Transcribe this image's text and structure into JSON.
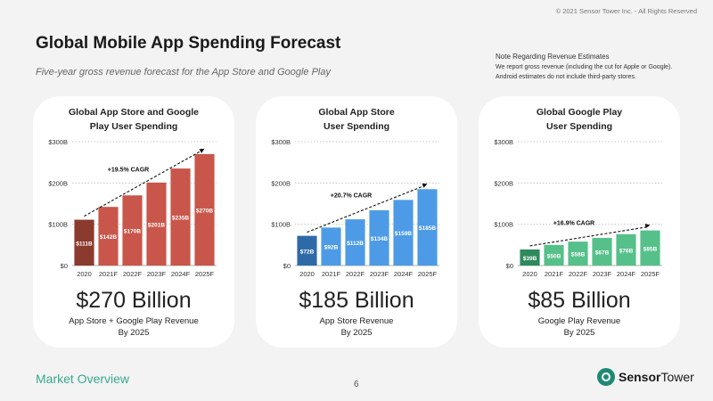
{
  "header": {
    "copyright": "© 2021 Sensor Tower Inc. - All Rights Reserved",
    "title": "Global Mobile App Spending Forecast",
    "subtitle": "Five-year gross revenue forecast for the App Store and Google Play"
  },
  "note": {
    "title": "Note Regarding Revenue Estimates",
    "line1": "We report gross revenue (including the cut for Apple or Google).",
    "line2": "Android estimates do not include third-party stores."
  },
  "cards": [
    {
      "title_line1": "Global App Store and Google",
      "title_line2": "Play User Spending",
      "big_number": "$270 Billion",
      "label_line1": "App Store + Google Play Revenue",
      "label_line2": "By 2025"
    },
    {
      "title_line1": "Global App Store",
      "title_line2": "User Spending",
      "big_number": "$185 Billion",
      "label_line1": "App Store Revenue",
      "label_line2": "By 2025"
    },
    {
      "title_line1": "Global Google Play",
      "title_line2": "User Spending",
      "big_number": "$85 Billion",
      "label_line1": "Google Play Revenue",
      "label_line2": "By 2025"
    }
  ],
  "chart_data": [
    {
      "type": "bar",
      "title": "Global App Store and Google Play User Spending",
      "categories": [
        "2020",
        "2021F",
        "2022F",
        "2023F",
        "2024F",
        "2025F"
      ],
      "values": [
        111,
        142,
        170,
        201,
        235,
        270
      ],
      "value_labels": [
        "$111B",
        "$142B",
        "$170B",
        "$201B",
        "$235B",
        "$270B"
      ],
      "yticks": [
        0,
        100,
        200,
        300
      ],
      "ytick_labels": [
        "$0",
        "$100B",
        "$200B",
        "$300B"
      ],
      "ylim": [
        0,
        300
      ],
      "cagr_label": "+19.5% CAGR",
      "colors": {
        "first": "#8b3a2e",
        "rest": "#c8564a"
      }
    },
    {
      "type": "bar",
      "title": "Global App Store User Spending",
      "categories": [
        "2020",
        "2021F",
        "2022F",
        "2023F",
        "2024F",
        "2025F"
      ],
      "values": [
        72,
        92,
        112,
        134,
        159,
        185
      ],
      "value_labels": [
        "$72B",
        "$92B",
        "$112B",
        "$134B",
        "$159B",
        "$185B"
      ],
      "yticks": [
        0,
        100,
        200,
        300
      ],
      "ytick_labels": [
        "$0",
        "$100B",
        "$200B",
        "$300B"
      ],
      "ylim": [
        0,
        300
      ],
      "cagr_label": "+20.7% CAGR",
      "colors": {
        "first": "#2f6aa8",
        "rest": "#4d9be6"
      }
    },
    {
      "type": "bar",
      "title": "Global Google Play User Spending",
      "categories": [
        "2020",
        "2021F",
        "2022F",
        "2023F",
        "2024F",
        "2025F"
      ],
      "values": [
        39,
        50,
        58,
        67,
        76,
        85
      ],
      "value_labels": [
        "$39B",
        "$50B",
        "$58B",
        "$67B",
        "$76B",
        "$85B"
      ],
      "yticks": [
        0,
        100,
        200,
        300
      ],
      "ytick_labels": [
        "$0",
        "$100B",
        "$200B",
        "$300B"
      ],
      "ylim": [
        0,
        300
      ],
      "cagr_label": "+16.9% CAGR",
      "colors": {
        "first": "#2e8a5c",
        "rest": "#56c08a"
      }
    }
  ],
  "footer": {
    "section": "Market Overview",
    "page": "6",
    "logo_text_bold": "Sensor",
    "logo_text_rest": "Tower"
  }
}
